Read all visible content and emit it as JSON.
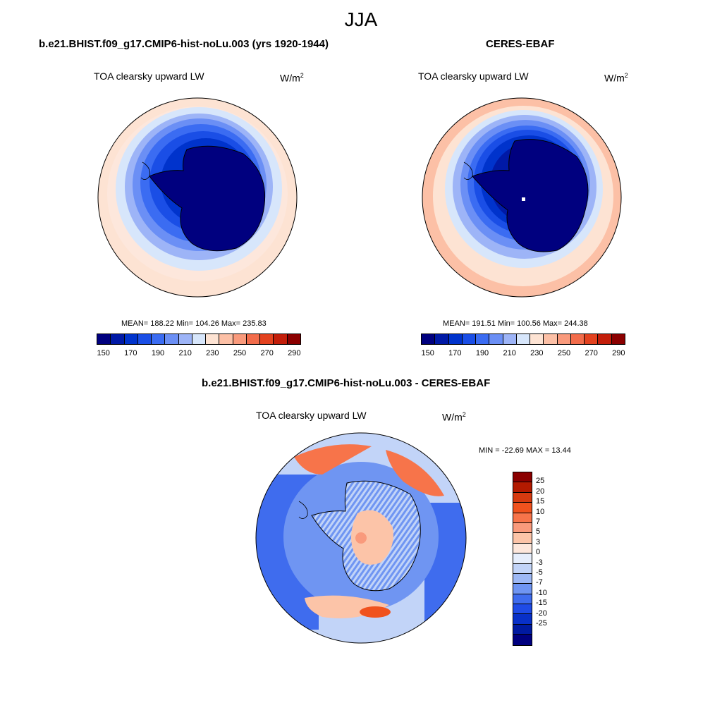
{
  "suptitle": "JJA",
  "panel_left": {
    "title": "b.e21.BHIST.f09_g17.CMIP6-hist-noLu.003 (yrs 1920-1944)",
    "variable": "TOA clearsky upward LW",
    "units_base": "W/m",
    "units_exp": "2",
    "stats": "MEAN= 188.22  Min= 104.26  Max= 235.83"
  },
  "panel_right": {
    "title": "CERES-EBAF",
    "variable": "TOA clearsky upward LW",
    "units_base": "W/m",
    "units_exp": "2",
    "stats": "MEAN= 191.51  Min= 100.56  Max= 244.38"
  },
  "panel_diff": {
    "title": "b.e21.BHIST.f09_g17.CMIP6-hist-noLu.003 - CERES-EBAF",
    "variable": "TOA clearsky upward LW",
    "units_base": "W/m",
    "units_exp": "2",
    "stats": "MIN = -22.69 MAX =  13.44"
  },
  "colorbar_main": {
    "colors": [
      "#00007f",
      "#0019a6",
      "#0033cc",
      "#1a4ee6",
      "#3b6cf2",
      "#6b8ff5",
      "#9db4f7",
      "#d7e6fb",
      "#fde3d3",
      "#fcc0a6",
      "#f99a7c",
      "#f26c4b",
      "#e3421f",
      "#c31e0a",
      "#8b0000"
    ],
    "tick_labels": [
      "150",
      "170",
      "190",
      "210",
      "230",
      "250",
      "270",
      "290"
    ]
  },
  "colorbar_diff": {
    "colors": [
      "#8b0000",
      "#b31a00",
      "#d63a10",
      "#f0521e",
      "#f7744a",
      "#f99a7c",
      "#fcc4a8",
      "#fde7dc",
      "#e6eefc",
      "#c2d4f8",
      "#9db8f5",
      "#6f95f2",
      "#3f6cee",
      "#1f4be6",
      "#0830c8",
      "#001aa0",
      "#00007f"
    ],
    "tick_labels": [
      "25",
      "20",
      "15",
      "10",
      "7",
      "5",
      "3",
      "0",
      "-3",
      "-5",
      "-7",
      "-10",
      "-15",
      "-20",
      "-25"
    ]
  }
}
